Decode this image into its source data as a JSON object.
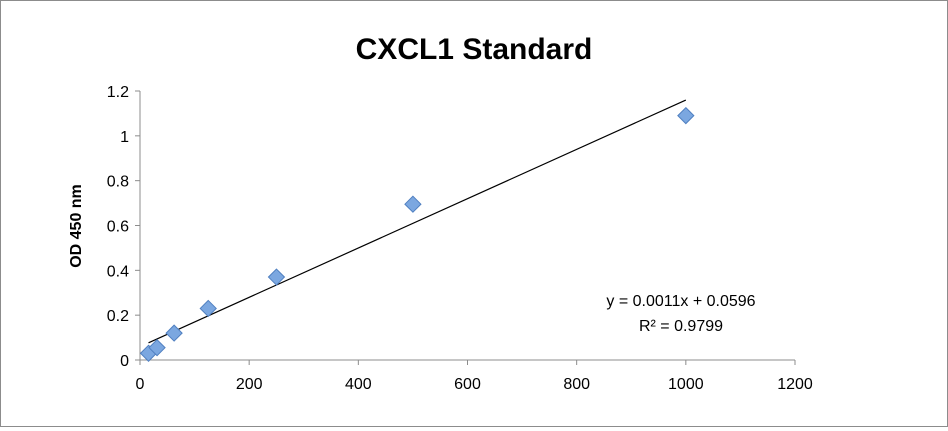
{
  "chart_data": {
    "type": "scatter",
    "title": "CXCL1 Standard",
    "xlabel": "",
    "ylabel": "OD 450 nm",
    "xlim": [
      0,
      1200
    ],
    "ylim": [
      0,
      1.2
    ],
    "x_ticks": [
      0,
      200,
      400,
      600,
      800,
      1000,
      1200
    ],
    "y_ticks": [
      0,
      0.2,
      0.4,
      0.6,
      0.8,
      1,
      1.2
    ],
    "x_tick_labels": [
      "0",
      "200",
      "400",
      "600",
      "800",
      "1000",
      "1200"
    ],
    "y_tick_labels": [
      "0",
      "0.2",
      "0.4",
      "0.6",
      "0.8",
      "1",
      "1.2"
    ],
    "grid": false,
    "legend": "none",
    "marker_color": "#7BA7E0",
    "marker_edge_color": "#4F7FC0",
    "points": [
      {
        "x": 15.6,
        "y": 0.03
      },
      {
        "x": 31.25,
        "y": 0.055
      },
      {
        "x": 62.5,
        "y": 0.12
      },
      {
        "x": 125,
        "y": 0.23
      },
      {
        "x": 250,
        "y": 0.37
      },
      {
        "x": 500,
        "y": 0.695
      },
      {
        "x": 1000,
        "y": 1.09
      }
    ],
    "trendline": {
      "slope": 0.0011,
      "intercept": 0.0596,
      "x_range": [
        15.6,
        1000
      ],
      "equation": "y = 0.0011x + 0.0596",
      "r_squared": "R² = 0.9799"
    }
  }
}
